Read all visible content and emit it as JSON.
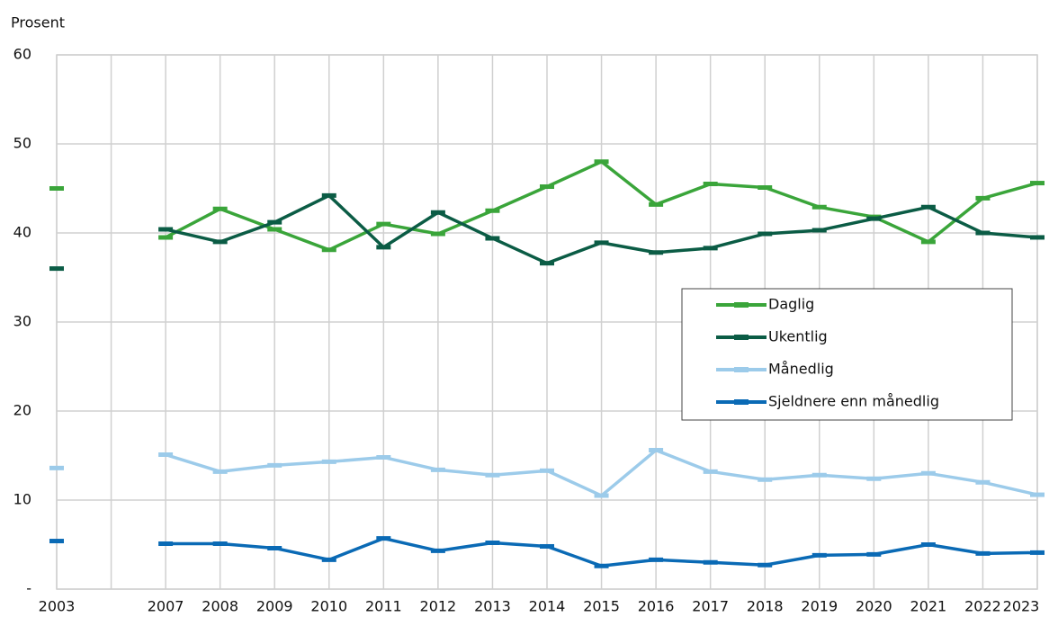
{
  "chart_data": {
    "type": "line",
    "ylabel": "Prosent",
    "categories": [
      "2003",
      null,
      "2007",
      "2008",
      "2009",
      "2010",
      "2011",
      "2012",
      "2013",
      "2014",
      "2015",
      "2016",
      "2017",
      "2018",
      "2019",
      "2020",
      "2021",
      "2022",
      "2023"
    ],
    "series": [
      {
        "name": "Daglig",
        "color": "#3aa53a",
        "values": [
          45.0,
          null,
          39.5,
          42.7,
          40.4,
          38.1,
          41.0,
          39.9,
          42.5,
          45.2,
          48.0,
          43.2,
          45.5,
          45.1,
          42.9,
          41.8,
          39.0,
          43.9,
          45.6
        ]
      },
      {
        "name": "Ukentlig",
        "color": "#0b5c45",
        "values": [
          36.0,
          null,
          40.4,
          39.0,
          41.2,
          44.2,
          38.4,
          42.3,
          39.4,
          36.6,
          38.9,
          37.8,
          38.3,
          39.9,
          40.3,
          41.6,
          42.9,
          40.0,
          39.5
        ]
      },
      {
        "name": "Månedlig",
        "color": "#9ccbea",
        "values": [
          13.6,
          null,
          15.1,
          13.2,
          13.9,
          14.3,
          14.8,
          13.4,
          12.8,
          13.3,
          10.5,
          15.6,
          13.2,
          12.3,
          12.8,
          12.4,
          13.0,
          12.0,
          10.6
        ]
      },
      {
        "name": "Sjeldnere enn månedlig",
        "color": "#0a6ab5",
        "values": [
          5.4,
          null,
          5.1,
          5.1,
          4.6,
          3.3,
          5.7,
          4.3,
          5.2,
          4.8,
          2.6,
          3.3,
          3.0,
          2.7,
          3.8,
          3.9,
          5.0,
          4.0,
          4.1
        ]
      }
    ],
    "ylim": [
      0,
      60
    ],
    "yticks": [
      {
        "value": 0,
        "label": "-"
      },
      10,
      20,
      30,
      40,
      50,
      60
    ],
    "grid": true,
    "legend": "right"
  }
}
